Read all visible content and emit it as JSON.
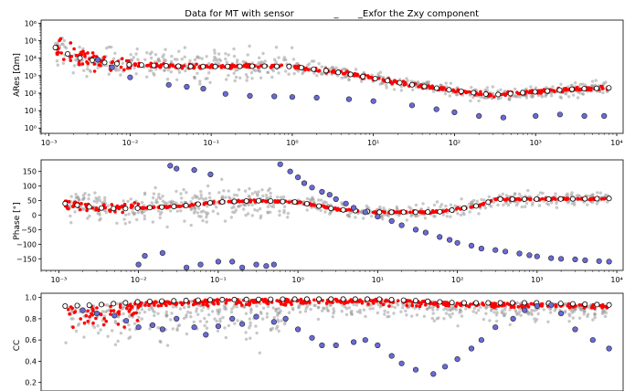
{
  "figure": {
    "title_left": "Data for MT with sensor",
    "title_mid": "_",
    "title_right": "_Exfor the Zxy component"
  },
  "colors": {
    "scatter_gray": "#9a9a9a",
    "estimate_red": "#ff0000",
    "final_white": "#ffffff",
    "other_blue": "#6a6ad8",
    "axis": "#000000"
  },
  "chart_data": [
    {
      "type": "scatter",
      "name": "ares",
      "title": "Data for MT with sensor _ _Exfor the Zxy component",
      "xlabel": "",
      "ylabel": "ARes [Ωm]",
      "xscale": "log",
      "yscale": "log",
      "xlim": [
        0.0008,
        12000
      ],
      "ylim": [
        0.5,
        1500000
      ],
      "xticks": [
        {
          "v": 0.001,
          "t": "10⁻³"
        },
        {
          "v": 0.01,
          "t": "10⁻²"
        },
        {
          "v": 0.1,
          "t": "10⁻¹"
        },
        {
          "v": 1,
          "t": "10⁰"
        },
        {
          "v": 10,
          "t": "10¹"
        },
        {
          "v": 100,
          "t": "10²"
        },
        {
          "v": 1000,
          "t": "10³"
        },
        {
          "v": 10000,
          "t": "10⁴"
        }
      ],
      "yticks": [
        {
          "v": 1,
          "t": "10⁰"
        },
        {
          "v": 10,
          "t": "10¹"
        },
        {
          "v": 100,
          "t": "10²"
        },
        {
          "v": 1000,
          "t": "10³"
        },
        {
          "v": 10000,
          "t": "10⁴"
        },
        {
          "v": 100000,
          "t": "10⁵"
        },
        {
          "v": 1000000,
          "t": "10⁶"
        }
      ],
      "curve_x": [
        0.0012,
        0.002,
        0.005,
        0.01,
        0.05,
        0.1,
        0.5,
        1,
        3,
        10,
        30,
        100,
        300,
        1000,
        3000,
        8000
      ],
      "curve_y": [
        40000,
        12000,
        5500,
        4200,
        3400,
        3300,
        3500,
        3300,
        1800,
        700,
        300,
        140,
        80,
        120,
        170,
        200
      ],
      "blue_x": [
        0.004,
        0.006,
        0.01,
        0.03,
        0.05,
        0.08,
        0.15,
        0.3,
        0.6,
        1,
        2,
        5,
        10,
        30,
        60,
        100,
        200,
        400,
        1000,
        2000,
        4000,
        7000
      ],
      "blue_y": [
        8000,
        3000,
        800,
        300,
        230,
        180,
        90,
        70,
        65,
        60,
        55,
        45,
        35,
        20,
        12,
        8,
        5,
        4,
        5,
        6,
        5,
        5
      ]
    },
    {
      "type": "scatter",
      "name": "phase",
      "xlabel": "",
      "ylabel": "Phase [°]",
      "xscale": "log",
      "yscale": "linear",
      "xlim": [
        0.0006,
        12000
      ],
      "ylim": [
        -190,
        190
      ],
      "xticks": [
        {
          "v": 0.001,
          "t": "10⁻³"
        },
        {
          "v": 0.01,
          "t": "10⁻²"
        },
        {
          "v": 0.1,
          "t": "10⁻¹"
        },
        {
          "v": 1,
          "t": "10⁰"
        },
        {
          "v": 10,
          "t": "10¹"
        },
        {
          "v": 100,
          "t": "10²"
        },
        {
          "v": 1000,
          "t": "10³"
        },
        {
          "v": 10000,
          "t": "10⁴"
        }
      ],
      "yticks": [
        {
          "v": -150,
          "t": "−150"
        },
        {
          "v": -100,
          "t": "−100"
        },
        {
          "v": -50,
          "t": "−50"
        },
        {
          "v": 0,
          "t": "0"
        },
        {
          "v": 50,
          "t": "50"
        },
        {
          "v": 100,
          "t": "100"
        },
        {
          "v": 150,
          "t": "150"
        }
      ],
      "curve_x": [
        0.0012,
        0.003,
        0.006,
        0.01,
        0.03,
        0.1,
        0.3,
        1,
        3,
        10,
        30,
        60,
        100,
        200,
        300,
        1000,
        3000,
        8000
      ],
      "curve_y": [
        40,
        25,
        22,
        24,
        30,
        45,
        50,
        45,
        20,
        10,
        10,
        12,
        20,
        35,
        55,
        55,
        56,
        57
      ],
      "blue_x": [
        0.01,
        0.012,
        0.02,
        0.025,
        0.03,
        0.04,
        0.05,
        0.06,
        0.08,
        0.1,
        0.15,
        0.2,
        0.3,
        0.4,
        0.5,
        0.6,
        0.8,
        1,
        1.2,
        1.5,
        2,
        2.5,
        3,
        4,
        5,
        7,
        10,
        15,
        20,
        30,
        40,
        60,
        80,
        100,
        150,
        200,
        300,
        400,
        600,
        800,
        1000,
        1500,
        2000,
        3000,
        4000,
        6000,
        8000
      ],
      "blue_y": [
        -170,
        -140,
        -130,
        170,
        160,
        -180,
        155,
        -170,
        140,
        -160,
        -160,
        -180,
        -170,
        -175,
        -170,
        175,
        150,
        130,
        110,
        95,
        80,
        70,
        55,
        40,
        25,
        10,
        -5,
        -20,
        -35,
        -50,
        -60,
        -75,
        -85,
        -95,
        -105,
        -115,
        -120,
        -125,
        -132,
        -138,
        -142,
        -148,
        -150,
        -152,
        -155,
        -158,
        -160
      ]
    },
    {
      "type": "scatter",
      "name": "cc",
      "xlabel": "",
      "ylabel": "CC",
      "xscale": "log",
      "yscale": "linear",
      "xlim": [
        0.0006,
        12000
      ],
      "ylim": [
        0.12,
        1.04
      ],
      "yticks": [
        {
          "v": 0.2,
          "t": "0.2"
        },
        {
          "v": 0.4,
          "t": "0.4"
        },
        {
          "v": 0.6,
          "t": "0.6"
        },
        {
          "v": 0.8,
          "t": "0.8"
        },
        {
          "v": 1.0,
          "t": "1.0"
        }
      ],
      "curve_x": [
        0.0012,
        0.003,
        0.01,
        0.1,
        1,
        10,
        30,
        100,
        1000,
        8000
      ],
      "curve_y": [
        0.92,
        0.93,
        0.96,
        0.98,
        0.985,
        0.985,
        0.97,
        0.95,
        0.95,
        0.93
      ],
      "blue_x": [
        0.002,
        0.003,
        0.005,
        0.007,
        0.01,
        0.015,
        0.02,
        0.03,
        0.05,
        0.07,
        0.1,
        0.15,
        0.2,
        0.3,
        0.5,
        0.7,
        1,
        1.5,
        2,
        3,
        5,
        7,
        10,
        15,
        20,
        30,
        50,
        70,
        100,
        150,
        200,
        300,
        500,
        700,
        1000,
        1500,
        2000,
        3000,
        5000,
        8000
      ],
      "blue_y": [
        0.88,
        0.85,
        0.83,
        0.78,
        0.72,
        0.74,
        0.7,
        0.8,
        0.72,
        0.65,
        0.73,
        0.8,
        0.75,
        0.82,
        0.77,
        0.8,
        0.7,
        0.62,
        0.55,
        0.55,
        0.58,
        0.6,
        0.55,
        0.45,
        0.38,
        0.32,
        0.28,
        0.35,
        0.42,
        0.52,
        0.6,
        0.72,
        0.8,
        0.88,
        0.92,
        0.93,
        0.85,
        0.7,
        0.6,
        0.52
      ]
    }
  ]
}
